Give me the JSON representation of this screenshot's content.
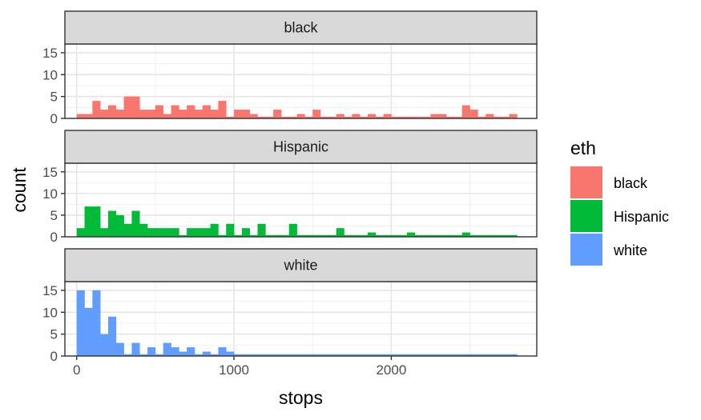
{
  "chart_data": {
    "type": "bar",
    "subtype": "faceted-histogram",
    "xlabel": "stops",
    "ylabel": "count",
    "xlim": [
      -75,
      2925
    ],
    "ylim": [
      0,
      17
    ],
    "x_ticks": [
      0,
      1000,
      2000
    ],
    "y_ticks": [
      0,
      5,
      10,
      15
    ],
    "bin_width": 50,
    "bin_starts": [
      0,
      50,
      100,
      150,
      200,
      250,
      300,
      350,
      400,
      450,
      500,
      550,
      600,
      650,
      700,
      750,
      800,
      850,
      900,
      950,
      1000,
      1050,
      1100,
      1150,
      1200,
      1250,
      1300,
      1350,
      1400,
      1450,
      1500,
      1550,
      1600,
      1650,
      1700,
      1750,
      1800,
      1850,
      1900,
      1950,
      2000,
      2050,
      2100,
      2150,
      2200,
      2250,
      2300,
      2350,
      2400,
      2450,
      2500,
      2550,
      2600,
      2650,
      2700,
      2750
    ],
    "grid": true,
    "legend_title": "eth",
    "legend_position": "right",
    "series": [
      {
        "name": "black",
        "color": "#F8766D",
        "values": [
          1,
          1,
          4,
          2,
          3,
          2,
          5,
          5,
          2,
          2,
          3,
          1,
          3,
          2,
          3,
          2,
          3,
          2,
          4,
          0,
          2,
          2,
          1,
          0,
          0,
          2,
          0,
          0,
          1,
          0,
          2,
          0,
          0,
          1,
          0,
          1,
          0,
          1,
          0,
          1,
          0,
          0,
          0,
          0,
          0,
          1,
          1,
          0,
          0,
          3,
          2,
          0,
          1,
          0,
          0,
          1
        ]
      },
      {
        "name": "Hispanic",
        "color": "#00BA38",
        "values": [
          2,
          7,
          7,
          2,
          6,
          5,
          3,
          6,
          3,
          2,
          2,
          2,
          2,
          0,
          2,
          2,
          2,
          3,
          0,
          3,
          0,
          2,
          0,
          3,
          0,
          0,
          0,
          0,
          0,
          0,
          0,
          0,
          0,
          0,
          0,
          0,
          0,
          0,
          0,
          0,
          0,
          0,
          0,
          0,
          0,
          0,
          0,
          0,
          0,
          0,
          0,
          0,
          0,
          0,
          0,
          0
        ]
      },
      {
        "name": "white",
        "color": "#619CFF",
        "values": [
          15,
          11,
          15,
          5,
          9,
          3,
          0,
          3,
          0,
          2,
          0,
          3,
          2,
          1,
          2,
          0,
          1,
          0,
          2,
          1,
          0,
          0,
          0,
          0,
          0,
          0,
          0,
          0,
          0,
          0,
          0,
          0,
          0,
          0,
          0,
          0,
          0,
          0,
          0,
          0,
          0,
          0,
          0,
          0,
          0,
          0,
          0,
          0,
          0,
          0,
          0,
          0,
          0,
          0,
          0,
          0
        ]
      }
    ],
    "extras": {
      "Hispanic": [
        {
          "bin_start": 1350,
          "value": 3
        },
        {
          "bin_start": 1650,
          "value": 2
        },
        {
          "bin_start": 1850,
          "value": 1
        },
        {
          "bin_start": 2100,
          "value": 1
        },
        {
          "bin_start": 2450,
          "value": 1
        }
      ]
    }
  }
}
